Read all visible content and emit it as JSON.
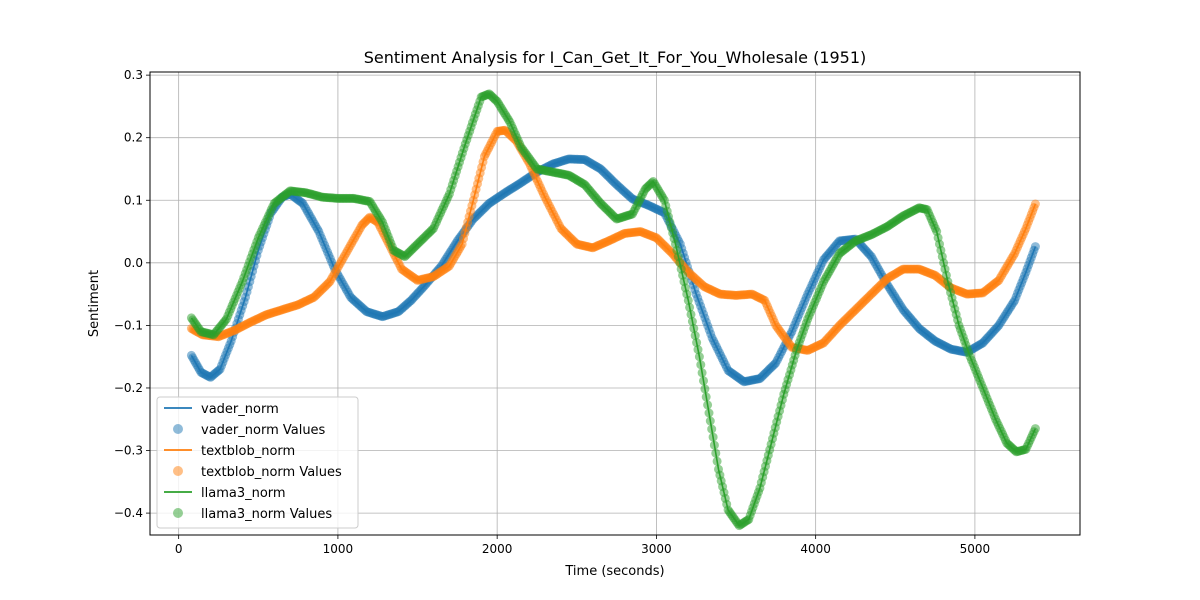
{
  "chart_data": {
    "type": "line",
    "title": "Sentiment Analysis for I_Can_Get_It_For_You_Wholesale (1951)",
    "xlabel": "Time (seconds)",
    "ylabel": "Sentiment",
    "xlim": [
      -180,
      5660
    ],
    "ylim": [
      -0.435,
      0.305
    ],
    "xticks": [
      0,
      1000,
      2000,
      3000,
      4000,
      5000
    ],
    "yticks": [
      -0.4,
      -0.3,
      -0.2,
      -0.1,
      0.0,
      0.1,
      0.2,
      0.3
    ],
    "xtick_labels": [
      "0",
      "1000",
      "2000",
      "3000",
      "4000",
      "5000"
    ],
    "ytick_labels": [
      "−0.4",
      "−0.3",
      "−0.2",
      "−0.1",
      "0.0",
      "0.1",
      "0.2",
      "0.3"
    ],
    "grid": true,
    "legend_position": "lower-left",
    "legend": [
      "vader_norm",
      "vader_norm Values",
      "textblob_norm",
      "textblob_norm Values",
      "llama3_norm",
      "llama3_norm Values"
    ],
    "series": [
      {
        "name": "vader_norm",
        "values_name": "vader_norm Values",
        "color": "#1f77b4",
        "points": [
          [
            80,
            -0.148
          ],
          [
            140,
            -0.175
          ],
          [
            200,
            -0.183
          ],
          [
            260,
            -0.17
          ],
          [
            330,
            -0.125
          ],
          [
            420,
            -0.055
          ],
          [
            500,
            0.02
          ],
          [
            580,
            0.08
          ],
          [
            650,
            0.105
          ],
          [
            700,
            0.11
          ],
          [
            780,
            0.095
          ],
          [
            880,
            0.05
          ],
          [
            980,
            -0.01
          ],
          [
            1080,
            -0.055
          ],
          [
            1180,
            -0.078
          ],
          [
            1280,
            -0.086
          ],
          [
            1380,
            -0.078
          ],
          [
            1460,
            -0.06
          ],
          [
            1550,
            -0.035
          ],
          [
            1650,
            -0.005
          ],
          [
            1750,
            0.035
          ],
          [
            1850,
            0.07
          ],
          [
            1950,
            0.095
          ],
          [
            2050,
            0.112
          ],
          [
            2150,
            0.128
          ],
          [
            2250,
            0.145
          ],
          [
            2350,
            0.158
          ],
          [
            2450,
            0.166
          ],
          [
            2550,
            0.165
          ],
          [
            2650,
            0.15
          ],
          [
            2750,
            0.125
          ],
          [
            2850,
            0.102
          ],
          [
            2950,
            0.092
          ],
          [
            3050,
            0.08
          ],
          [
            3150,
            0.03
          ],
          [
            3250,
            -0.05
          ],
          [
            3350,
            -0.12
          ],
          [
            3450,
            -0.172
          ],
          [
            3550,
            -0.19
          ],
          [
            3650,
            -0.185
          ],
          [
            3750,
            -0.16
          ],
          [
            3850,
            -0.11
          ],
          [
            3950,
            -0.05
          ],
          [
            4050,
            0.005
          ],
          [
            4150,
            0.035
          ],
          [
            4250,
            0.038
          ],
          [
            4350,
            0.01
          ],
          [
            4450,
            -0.035
          ],
          [
            4550,
            -0.075
          ],
          [
            4650,
            -0.105
          ],
          [
            4750,
            -0.125
          ],
          [
            4850,
            -0.138
          ],
          [
            4950,
            -0.143
          ],
          [
            5050,
            -0.128
          ],
          [
            5150,
            -0.1
          ],
          [
            5250,
            -0.06
          ],
          [
            5320,
            -0.015
          ],
          [
            5380,
            0.026
          ]
        ]
      },
      {
        "name": "textblob_norm",
        "values_name": "textblob_norm Values",
        "color": "#ff7f0e",
        "points": [
          [
            80,
            -0.105
          ],
          [
            150,
            -0.115
          ],
          [
            250,
            -0.118
          ],
          [
            350,
            -0.108
          ],
          [
            450,
            -0.095
          ],
          [
            550,
            -0.083
          ],
          [
            650,
            -0.075
          ],
          [
            750,
            -0.067
          ],
          [
            850,
            -0.055
          ],
          [
            950,
            -0.03
          ],
          [
            1050,
            0.015
          ],
          [
            1150,
            0.06
          ],
          [
            1200,
            0.073
          ],
          [
            1250,
            0.065
          ],
          [
            1320,
            0.03
          ],
          [
            1400,
            -0.01
          ],
          [
            1500,
            -0.028
          ],
          [
            1600,
            -0.022
          ],
          [
            1700,
            -0.005
          ],
          [
            1780,
            0.03
          ],
          [
            1850,
            0.1
          ],
          [
            1920,
            0.17
          ],
          [
            2000,
            0.21
          ],
          [
            2050,
            0.212
          ],
          [
            2120,
            0.195
          ],
          [
            2200,
            0.16
          ],
          [
            2300,
            0.105
          ],
          [
            2400,
            0.055
          ],
          [
            2500,
            0.03
          ],
          [
            2600,
            0.024
          ],
          [
            2700,
            0.035
          ],
          [
            2800,
            0.047
          ],
          [
            2900,
            0.05
          ],
          [
            3000,
            0.04
          ],
          [
            3100,
            0.015
          ],
          [
            3200,
            -0.015
          ],
          [
            3300,
            -0.038
          ],
          [
            3400,
            -0.05
          ],
          [
            3500,
            -0.052
          ],
          [
            3600,
            -0.05
          ],
          [
            3680,
            -0.06
          ],
          [
            3750,
            -0.1
          ],
          [
            3850,
            -0.135
          ],
          [
            3950,
            -0.14
          ],
          [
            4050,
            -0.128
          ],
          [
            4150,
            -0.1
          ],
          [
            4250,
            -0.075
          ],
          [
            4350,
            -0.05
          ],
          [
            4450,
            -0.025
          ],
          [
            4550,
            -0.01
          ],
          [
            4650,
            -0.01
          ],
          [
            4750,
            -0.02
          ],
          [
            4850,
            -0.04
          ],
          [
            4950,
            -0.05
          ],
          [
            5050,
            -0.048
          ],
          [
            5150,
            -0.028
          ],
          [
            5250,
            0.015
          ],
          [
            5320,
            0.055
          ],
          [
            5380,
            0.094
          ]
        ]
      },
      {
        "name": "llama3_norm",
        "values_name": "llama3_norm Values",
        "color": "#2ca02c",
        "points": [
          [
            80,
            -0.088
          ],
          [
            140,
            -0.11
          ],
          [
            220,
            -0.115
          ],
          [
            300,
            -0.09
          ],
          [
            400,
            -0.03
          ],
          [
            500,
            0.04
          ],
          [
            600,
            0.095
          ],
          [
            700,
            0.115
          ],
          [
            800,
            0.112
          ],
          [
            900,
            0.105
          ],
          [
            1000,
            0.103
          ],
          [
            1100,
            0.103
          ],
          [
            1200,
            0.098
          ],
          [
            1280,
            0.065
          ],
          [
            1350,
            0.02
          ],
          [
            1420,
            0.01
          ],
          [
            1500,
            0.03
          ],
          [
            1600,
            0.055
          ],
          [
            1700,
            0.11
          ],
          [
            1800,
            0.19
          ],
          [
            1900,
            0.265
          ],
          [
            1950,
            0.27
          ],
          [
            2000,
            0.258
          ],
          [
            2080,
            0.225
          ],
          [
            2150,
            0.185
          ],
          [
            2250,
            0.15
          ],
          [
            2350,
            0.145
          ],
          [
            2450,
            0.14
          ],
          [
            2550,
            0.125
          ],
          [
            2650,
            0.095
          ],
          [
            2750,
            0.07
          ],
          [
            2850,
            0.078
          ],
          [
            2930,
            0.118
          ],
          [
            2980,
            0.13
          ],
          [
            3050,
            0.1
          ],
          [
            3120,
            0.03
          ],
          [
            3200,
            -0.06
          ],
          [
            3270,
            -0.15
          ],
          [
            3330,
            -0.24
          ],
          [
            3390,
            -0.33
          ],
          [
            3450,
            -0.395
          ],
          [
            3520,
            -0.42
          ],
          [
            3580,
            -0.41
          ],
          [
            3650,
            -0.36
          ],
          [
            3720,
            -0.29
          ],
          [
            3800,
            -0.21
          ],
          [
            3880,
            -0.14
          ],
          [
            3950,
            -0.09
          ],
          [
            4050,
            -0.03
          ],
          [
            4150,
            0.015
          ],
          [
            4250,
            0.035
          ],
          [
            4350,
            0.045
          ],
          [
            4450,
            0.058
          ],
          [
            4550,
            0.075
          ],
          [
            4650,
            0.088
          ],
          [
            4700,
            0.085
          ],
          [
            4760,
            0.05
          ],
          [
            4830,
            -0.03
          ],
          [
            4900,
            -0.1
          ],
          [
            4970,
            -0.15
          ],
          [
            5050,
            -0.2
          ],
          [
            5130,
            -0.25
          ],
          [
            5200,
            -0.288
          ],
          [
            5260,
            -0.302
          ],
          [
            5320,
            -0.298
          ],
          [
            5380,
            -0.265
          ]
        ]
      }
    ]
  }
}
